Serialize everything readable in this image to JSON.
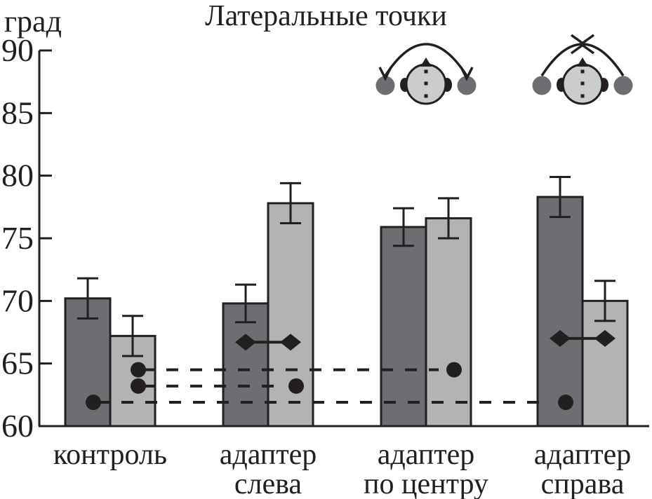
{
  "chart_data": {
    "type": "bar",
    "title": "Латеральные точки",
    "ylabel": "град",
    "ylim": [
      60,
      90
    ],
    "yticks": [
      90,
      85,
      80,
      75,
      70,
      65,
      60
    ],
    "grid": false,
    "legend_position": "top-right-icons",
    "categories": [
      {
        "lines": [
          "контроль"
        ]
      },
      {
        "lines": [
          "адаптер",
          "слева"
        ]
      },
      {
        "lines": [
          "адаптер",
          "по центру"
        ]
      },
      {
        "lines": [
          "адаптер",
          "справа"
        ]
      }
    ],
    "series": [
      {
        "name": "dark-bars",
        "color": "#6d6e71",
        "values": [
          70.2,
          69.8,
          75.9,
          78.3
        ],
        "errors": [
          1.6,
          1.5,
          1.5,
          1.6
        ]
      },
      {
        "name": "light-bars",
        "color": "#b1b3b5",
        "values": [
          67.2,
          77.8,
          76.6,
          70.0
        ],
        "errors": [
          1.6,
          1.6,
          1.6,
          1.6
        ]
      }
    ],
    "diamond_connectors": [
      {
        "group": 1,
        "value": 66.7
      },
      {
        "group": 3,
        "value": 67.0
      }
    ],
    "reference_dots": [
      {
        "group": 0,
        "series": 0,
        "value": 61.9
      },
      {
        "group": 0,
        "series": 1,
        "value": 64.5
      },
      {
        "group": 0,
        "series": 1,
        "value": 63.2
      },
      {
        "group": 1,
        "series": 1,
        "value": 63.2
      },
      {
        "group": 2,
        "series": 1,
        "value": 64.5
      },
      {
        "group": 3,
        "series": 0,
        "value": 61.9
      }
    ],
    "dashed_lines": [
      {
        "value": 64.5,
        "from": {
          "group": 0,
          "series": 1
        },
        "to": {
          "group": 2,
          "series": 1
        }
      },
      {
        "value": 63.2,
        "from": {
          "group": 0,
          "series": 1
        },
        "to": {
          "group": 1,
          "series": 1
        }
      },
      {
        "value": 61.9,
        "from": {
          "group": 0,
          "series": 0
        },
        "to": {
          "group": 3,
          "series": 0
        }
      }
    ],
    "legend_icons": [
      {
        "name": "head-speakers-arc-down-arrows-icon"
      },
      {
        "name": "head-speakers-arc-crossed-arrows-icon"
      }
    ],
    "colors": {
      "line": "#231f20",
      "bar_dark": "#6d6e71",
      "bar_light": "#b1b3b5",
      "head_fill": "#cbcccd",
      "speaker_fill": "#6d6e71"
    }
  }
}
